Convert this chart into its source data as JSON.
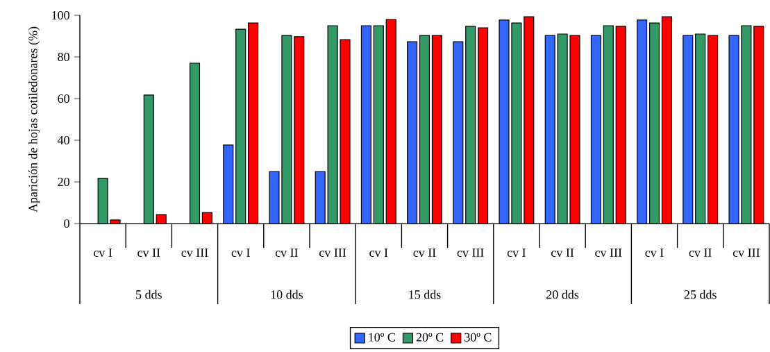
{
  "chart_data": {
    "type": "bar",
    "ylabel": "Aparición de hojas cotiledonares (%)",
    "categories": [
      "cv I",
      "cv II",
      "cv III",
      "cv I",
      "cv II",
      "cv III",
      "cv I",
      "cv II",
      "cv III",
      "cv I",
      "cv II",
      "cv III",
      "cv I",
      "cv II",
      "cv III"
    ],
    "annotations": [
      "5 dds",
      "10 dds",
      "15 dds",
      "20 dds",
      "25 dds"
    ],
    "series": [
      {
        "name": "10º C",
        "color": "#3366ff",
        "values": [
          null,
          null,
          null,
          37.7,
          25,
          25,
          95,
          87.3,
          87.3,
          97.7,
          90.3,
          90.3,
          97.7,
          90.3,
          90.3
        ]
      },
      {
        "name": "20º C",
        "color": "#339966",
        "values": [
          21.7,
          61.7,
          77,
          93.3,
          90.3,
          95,
          95,
          90.3,
          94.7,
          96.3,
          91,
          95,
          96.3,
          91,
          95
        ]
      },
      {
        "name": "30º C",
        "color": "#ff0000",
        "values": [
          1.7,
          4.3,
          5.3,
          96.3,
          89.7,
          88.3,
          98,
          90.3,
          94,
          99.3,
          90.3,
          94.7,
          99.3,
          90.3,
          94.7
        ]
      }
    ],
    "ylim": [
      0,
      100
    ],
    "yticks": [
      0,
      20,
      40,
      60,
      80,
      100
    ],
    "grid": false,
    "legend": "bottom"
  }
}
